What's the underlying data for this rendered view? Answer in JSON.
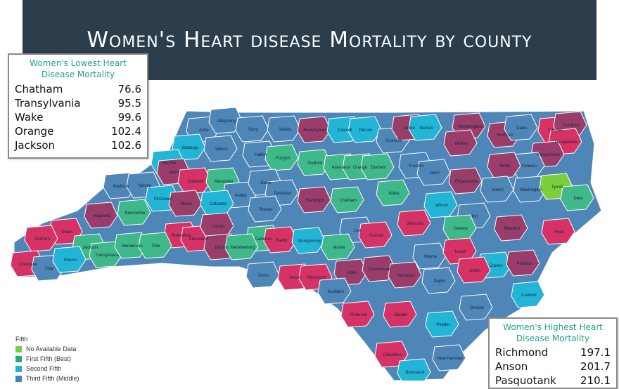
{
  "title": "Women's Heart disease Mortality by county",
  "lowest_box": {
    "title_line1": "Women's Lowest Heart",
    "title_line2": "Disease Mortality",
    "rows": [
      {
        "county": "Chatham",
        "value": "76.6"
      },
      {
        "county": "Transylvania",
        "value": "95.5"
      },
      {
        "county": "Wake",
        "value": "99.6"
      },
      {
        "county": "Orange",
        "value": "102.4"
      },
      {
        "county": "Jackson",
        "value": "102.6"
      }
    ]
  },
  "highest_box": {
    "title_line1": "Women's Highest Heart",
    "title_line2": "Disease Mortality",
    "rows": [
      {
        "county": "Richmond",
        "value": "197.1"
      },
      {
        "county": "Anson",
        "value": "201.7"
      },
      {
        "county": "Pasquotank",
        "value": "210.1"
      }
    ]
  },
  "legend": {
    "title": "Fifth",
    "items": [
      {
        "label": "No Available Data",
        "color": "#7ccf3c"
      },
      {
        "label": "First Fifth (Best)",
        "color": "#2aaa7c"
      },
      {
        "label": "Second Fifth",
        "color": "#1fb3d4"
      },
      {
        "label": "Third Fifth (Middle)",
        "color": "#4585b5"
      }
    ]
  },
  "colors": {
    "no_data": "#7ccf3c",
    "first": "#3fb88a",
    "second": "#22b5d6",
    "third": "#4f86b8",
    "fourth": "#9a3d6a",
    "fifth": "#d63265"
  },
  "counties": [
    "Ashe",
    "Alleghany",
    "Surry",
    "Stokes",
    "Rockingham",
    "Caswell",
    "Person",
    "Granville",
    "Vance",
    "Warren",
    "Northampton",
    "Hertford",
    "Gates",
    "Camden",
    "Currituck",
    "Pasquotank",
    "Perquimans",
    "Chowan",
    "Bertie",
    "Halifax",
    "Watauga",
    "Wilkes",
    "Yadkin",
    "Forsyth",
    "Guilford",
    "Alamance",
    "Orange",
    "Durham",
    "Franklin",
    "Nash",
    "Edgecombe",
    "Martin",
    "Washington",
    "Tyrrell",
    "Dare",
    "Mitchell",
    "Avery",
    "Caldwell",
    "Alexander",
    "Iredell",
    "Davie",
    "Davidson",
    "Randolph",
    "Chatham",
    "Wake",
    "Wilson",
    "Pitt",
    "Beaufort",
    "Hyde",
    "Madison",
    "Yancey",
    "McDowell",
    "Burke",
    "Catawba",
    "Rowan",
    "Lee",
    "Harnett",
    "Johnston",
    "Greene",
    "Haywood",
    "Buncombe",
    "Rutherford",
    "Cleveland",
    "Lincoln",
    "Gaston",
    "Cabarrus",
    "Stanly",
    "Montgomery",
    "Moore",
    "Wayne",
    "Lenoir",
    "Craven",
    "Pamlico",
    "Swain",
    "Graham",
    "Jackson",
    "Transylvania",
    "Henderson",
    "Polk",
    "Mecklenburg",
    "Union",
    "Anson",
    "Richmond",
    "Hoke",
    "Cumberland",
    "Sampson",
    "Duplin",
    "Jones",
    "Onslow",
    "Carteret",
    "Cherokee",
    "Clay",
    "Macon",
    "Scotland",
    "Robeson",
    "Bladen",
    "Pender",
    "Columbus",
    "Brunswick",
    "New Hanover"
  ]
}
